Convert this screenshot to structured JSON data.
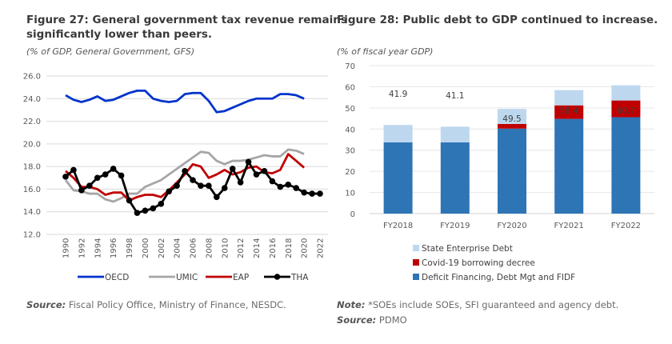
{
  "left": {
    "title_line1": "Figure 27: General government tax revenue remains",
    "title_line2": "significantly lower than peers.",
    "subtitle": "(% of GDP, General Government, GFS)",
    "source_label": "Source:",
    "source_text": " Fiscal Policy Office, Ministry of Finance, NESDC."
  },
  "right": {
    "title": "Figure 28: Public debt to GDP continued to increase.",
    "subtitle": "(% of fiscal year GDP)",
    "note_label": "Note:",
    "note_text": " *SOEs include SOEs, SFI guaranteed and agency debt.",
    "source_label": "Source:",
    "source_text": " PDMO"
  },
  "chart_data": [
    {
      "type": "line",
      "title": "Figure 27: General government tax revenue remains significantly lower than peers.",
      "subtitle": "(% of GDP, General Government, GFS)",
      "xlabel": "",
      "ylabel": "",
      "ylim": [
        12.0,
        26.0
      ],
      "yticks": [
        "12.0",
        "14.0",
        "16.0",
        "18.0",
        "20.0",
        "22.0",
        "24.0",
        "26.0"
      ],
      "xticks": [
        "1990",
        "1992",
        "1994",
        "1996",
        "1998",
        "2000",
        "2002",
        "2004",
        "2006",
        "2008",
        "2010",
        "2012",
        "2014",
        "2016",
        "2018",
        "2020",
        "2022"
      ],
      "grid": true,
      "legend_position": "bottom",
      "x": [
        1990,
        1991,
        1992,
        1993,
        1994,
        1995,
        1996,
        1997,
        1998,
        1999,
        2000,
        2001,
        2002,
        2003,
        2004,
        2005,
        2006,
        2007,
        2008,
        2009,
        2010,
        2011,
        2012,
        2013,
        2014,
        2015,
        2016,
        2017,
        2018,
        2019,
        2020,
        2021,
        2022
      ],
      "series": [
        {
          "name": "OECD",
          "color": "#0033cc",
          "markers": false,
          "values": [
            24.3,
            23.9,
            23.7,
            23.9,
            24.2,
            23.8,
            23.9,
            24.2,
            24.5,
            24.7,
            24.7,
            24.0,
            23.8,
            23.7,
            23.8,
            24.4,
            24.5,
            24.5,
            23.8,
            22.8,
            22.9,
            23.2,
            23.5,
            23.8,
            24.0,
            24.0,
            24.0,
            24.4,
            24.4,
            24.3,
            24.0,
            null,
            null
          ]
        },
        {
          "name": "UMIC",
          "color": "#a6a6a6",
          "markers": false,
          "values": [
            16.8,
            15.9,
            15.8,
            15.6,
            15.6,
            15.1,
            14.9,
            15.2,
            15.6,
            15.6,
            16.2,
            16.5,
            16.8,
            17.3,
            17.8,
            18.3,
            18.8,
            19.3,
            19.2,
            18.5,
            18.2,
            18.5,
            18.5,
            18.6,
            18.8,
            19.0,
            18.9,
            18.9,
            19.5,
            19.4,
            19.1,
            null,
            null
          ]
        },
        {
          "name": "EAP",
          "color": "#c00000",
          "markers": false,
          "values": [
            17.6,
            17.0,
            16.2,
            16.2,
            16.0,
            15.5,
            15.7,
            15.7,
            15.0,
            15.3,
            15.5,
            15.5,
            15.3,
            15.9,
            16.6,
            17.3,
            18.2,
            18.0,
            17.0,
            17.3,
            17.7,
            17.3,
            17.5,
            17.9,
            18.0,
            17.5,
            17.4,
            17.7,
            19.1,
            18.5,
            17.9,
            null,
            null
          ]
        },
        {
          "name": "THA",
          "color": "#000000",
          "markers": true,
          "values": [
            17.1,
            17.7,
            15.9,
            16.3,
            17.0,
            17.3,
            17.8,
            17.2,
            15.0,
            13.9,
            14.1,
            14.3,
            14.7,
            15.8,
            16.3,
            17.6,
            16.8,
            16.3,
            16.3,
            15.3,
            16.1,
            17.8,
            16.6,
            18.4,
            17.3,
            17.6,
            16.7,
            16.2,
            16.4,
            16.1,
            15.7,
            15.6,
            15.6
          ]
        }
      ]
    },
    {
      "type": "bar",
      "stacked": true,
      "title": "Figure 28: Public debt to GDP continued to increase.",
      "subtitle": "(% of fiscal year GDP)",
      "xlabel": "",
      "ylabel": "",
      "ylim": [
        0,
        70
      ],
      "yticks": [
        "0",
        "10",
        "20",
        "30",
        "40",
        "50",
        "60",
        "70"
      ],
      "grid": true,
      "legend_position": "bottom",
      "categories": [
        "FY2018",
        "FY2019",
        "FY2020",
        "FY2021",
        "FY2022"
      ],
      "totals": [
        "41.9",
        "41.1",
        "49.5",
        "58.4",
        "60.7"
      ],
      "series": [
        {
          "name": "Deficit Financing, Debt Mgt and FIDF",
          "color": "#2e75b6",
          "values": [
            33.7,
            33.7,
            40.2,
            44.8,
            45.6
          ]
        },
        {
          "name": "Covid-19 borrowing decree",
          "color": "#c00000",
          "values": [
            0,
            0,
            2.2,
            6.4,
            7.9
          ]
        },
        {
          "name": "State Enterprise Debt",
          "color": "#bdd7ee",
          "values": [
            8.2,
            7.4,
            7.1,
            7.2,
            7.2
          ]
        }
      ],
      "legend_order": [
        "State Enterprise Debt",
        "Covid-19 borrowing decree",
        "Deficit Financing, Debt Mgt and FIDF"
      ]
    }
  ]
}
